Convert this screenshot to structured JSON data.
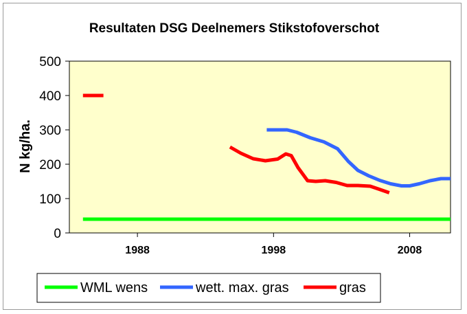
{
  "chart_data": {
    "type": "line",
    "title": "Resultaten DSG Deelnemers Stikstofoverschot",
    "xlabel": "",
    "ylabel": "N  kg/ha.",
    "xlim": [
      1983,
      2011
    ],
    "ylim": [
      0,
      500
    ],
    "y_ticks": [
      0,
      100,
      200,
      300,
      400,
      500
    ],
    "x_ticks": [
      1988,
      1998,
      2008
    ],
    "grid": false,
    "legend": "bottom",
    "plot_background": "#ffffcc",
    "series": [
      {
        "name": "WML wens",
        "color": "#00ff00",
        "x": [
          1984,
          2011
        ],
        "y": [
          40,
          40
        ]
      },
      {
        "name": "wett. max. gras",
        "color": "#3366ff",
        "x": [
          1997.5,
          1999,
          1999.7,
          2000.7,
          2001.7,
          2002.7,
          2003.5,
          2004.2,
          2005,
          2005.8,
          2006.6,
          2007.4,
          2008,
          2008.7,
          2009.5,
          2010.3,
          2011
        ],
        "y": [
          300,
          300,
          293,
          277,
          265,
          245,
          208,
          182,
          166,
          153,
          143,
          137,
          137,
          143,
          152,
          158,
          158
        ]
      },
      {
        "name": "gras",
        "color": "#ff0000",
        "segments": [
          {
            "x": [
              1984,
              1985.5
            ],
            "y": [
              400,
              400
            ]
          },
          {
            "x": [
              1994.8,
              1995.6,
              1996.5,
              1997.4,
              1998.3,
              1998.9,
              1999.3,
              1999.8,
              2000.5,
              2001.1,
              2001.8,
              2002.6,
              2003.4,
              2004.2,
              2005.1,
              2005.7,
              2006.5
            ],
            "y": [
              250,
              232,
              216,
              210,
              215,
              230,
              225,
              190,
              152,
              150,
              152,
              147,
              138,
              138,
              136,
              128,
              117
            ]
          }
        ]
      }
    ]
  }
}
